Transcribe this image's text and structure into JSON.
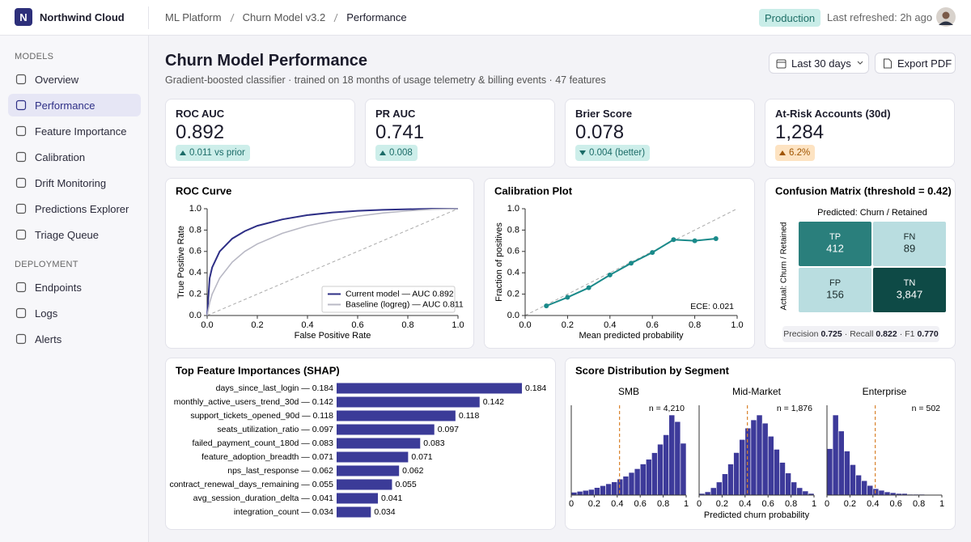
{
  "header": {
    "logo": "N",
    "brand": "Northwind Cloud",
    "breadcrumb": [
      "ML Platform",
      "Churn Model v3.2",
      "Performance"
    ],
    "badge": "Production",
    "refreshed": "Last refreshed: 2h ago"
  },
  "sidebar": {
    "sections": [
      {
        "title": "MODELS",
        "items": [
          {
            "label": "Overview"
          },
          {
            "label": "Performance",
            "active": true
          },
          {
            "label": "Feature Importance"
          },
          {
            "label": "Calibration"
          },
          {
            "label": "Drift Monitoring"
          },
          {
            "label": "Predictions Explorer"
          },
          {
            "label": "Triage Queue"
          }
        ]
      },
      {
        "title": "DEPLOYMENT",
        "items": [
          {
            "label": "Endpoints"
          },
          {
            "label": "Logs"
          },
          {
            "label": "Alerts"
          }
        ]
      }
    ]
  },
  "page": {
    "title": "Churn Model Performance",
    "subtitle": "Gradient-boosted classifier · trained on 18 months of usage telemetry & billing events · 47 features",
    "buttons": [
      "Last 30 days",
      "Export PDF"
    ],
    "distribution_title": "Score Distribution by Segment"
  },
  "kpis": [
    {
      "label": "ROC AUC",
      "value": "0.892",
      "delta": "0.011 vs prior",
      "trend": "up",
      "tone": "good"
    },
    {
      "label": "PR AUC",
      "value": "0.741",
      "delta": "0.008",
      "trend": "up",
      "tone": "good"
    },
    {
      "label": "Brier Score",
      "value": "0.078",
      "delta": "0.004 (better)",
      "trend": "down",
      "tone": "good"
    },
    {
      "label": "At-Risk Accounts (30d)",
      "value": "1,284",
      "delta": "6.2%",
      "trend": "up",
      "tone": "warn"
    }
  ],
  "chart_data": [
    {
      "type": "line",
      "title": "ROC Curve",
      "xlabel": "False Positive Rate",
      "ylabel": "True Positive Rate",
      "x": [
        0,
        0.01,
        0.02,
        0.05,
        0.1,
        0.15,
        0.2,
        0.3,
        0.4,
        0.5,
        0.6,
        0.7,
        0.8,
        0.9,
        1
      ],
      "series": [
        {
          "name": "Current model — AUC 0.892",
          "color": "#2e2f86",
          "values": [
            0,
            0.35,
            0.45,
            0.6,
            0.72,
            0.79,
            0.84,
            0.9,
            0.94,
            0.965,
            0.98,
            0.99,
            0.995,
            1,
            1
          ]
        },
        {
          "name": "Baseline (logreg) — AUC 0.811",
          "color": "#b8b8c4",
          "values": [
            0,
            0.12,
            0.2,
            0.35,
            0.5,
            0.6,
            0.67,
            0.77,
            0.84,
            0.89,
            0.93,
            0.96,
            0.98,
            0.995,
            1
          ]
        }
      ],
      "xlim": [
        0,
        1
      ],
      "ylim": [
        0,
        1
      ],
      "xticks": [
        {
          "value": 0,
          "label": "0.0"
        },
        0.2,
        0.4,
        0.6,
        0.8,
        {
          "value": 1,
          "label": "1.0"
        }
      ],
      "yticks": [
        {
          "value": 0,
          "label": "0.0"
        },
        0.2,
        0.4,
        0.6,
        0.8,
        {
          "value": 1,
          "label": "1.0"
        }
      ],
      "legend": "lower right"
    },
    {
      "type": "line",
      "title": "Calibration Plot",
      "xlabel": "Mean predicted probability",
      "ylabel": "Fraction of positives",
      "annotation": "ECE: 0.021",
      "markers": true,
      "x": [
        0.1,
        0.2,
        0.3,
        0.4,
        0.5,
        0.6,
        0.7,
        0.8,
        0.9
      ],
      "series": [
        {
          "color": "#1a8a8a",
          "values": [
            0.09,
            0.17,
            0.26,
            0.38,
            0.49,
            0.59,
            0.71,
            0.7,
            0.72
          ]
        }
      ],
      "xlim": [
        0,
        1
      ],
      "ylim": [
        0,
        1
      ],
      "xticks": [
        {
          "value": 0,
          "label": "0.0"
        },
        0.2,
        0.4,
        0.6,
        0.8,
        {
          "value": 1,
          "label": "1.0"
        }
      ],
      "yticks": [
        {
          "value": 0,
          "label": "0.0"
        },
        0.2,
        0.4,
        0.6,
        0.8,
        {
          "value": 1,
          "label": "1.0"
        }
      ]
    },
    {
      "type": "heatmap",
      "title": "Confusion Matrix (threshold = 0.42)",
      "xlabel": "Predicted: Churn / Retained",
      "ylabel": "Actual: Churn / Retained",
      "cell_names": [
        "TP",
        "FN",
        "FP",
        "TN"
      ],
      "values": [
        412,
        89,
        156,
        3847
      ],
      "value_labels": [
        "412",
        "89",
        "156",
        "3,847"
      ],
      "colors": [
        "#2a7f7c",
        "#b9dde0",
        "#b9dde0",
        "#0e4a46"
      ],
      "metrics": [
        {
          "name": "Precision",
          "value": "0.725"
        },
        {
          "name": "Recall",
          "value": "0.822"
        },
        {
          "name": "F1",
          "value": "0.770"
        }
      ],
      "metrics_separator": "·"
    },
    {
      "type": "hbar",
      "title": "Top Feature Importances (SHAP)",
      "color": "#3b3b98",
      "categories": [
        "days_since_last_login — 0.184",
        "monthly_active_users_trend_30d — 0.142",
        "support_tickets_opened_90d — 0.118",
        "seats_utilization_ratio — 0.097",
        "failed_payment_count_180d — 0.083",
        "feature_adoption_breadth — 0.071",
        "nps_last_response — 0.062",
        "contract_renewal_days_remaining — 0.055",
        "avg_session_duration_delta — 0.041",
        "integration_count — 0.034"
      ],
      "values": [
        0.184,
        0.142,
        0.118,
        0.097,
        0.083,
        0.071,
        0.062,
        0.055,
        0.041,
        0.034
      ]
    },
    {
      "type": "histogram",
      "title": "SMB",
      "annotation": "n = 4,210",
      "color": "#3d3a9a",
      "threshold": 0.42,
      "bins": [
        0,
        0.05,
        0.1,
        0.15,
        0.2,
        0.25,
        0.3,
        0.35,
        0.4,
        0.45,
        0.5,
        0.55,
        0.6,
        0.65,
        0.7,
        0.75,
        0.8,
        0.85,
        0.9,
        0.95,
        1
      ],
      "values": [
        3,
        4,
        5,
        6,
        8,
        10,
        12,
        14,
        17,
        20,
        24,
        28,
        33,
        38,
        45,
        54,
        64,
        85,
        78,
        55
      ],
      "xlim": [
        0,
        1
      ],
      "xticks": [
        0,
        0.2,
        0.4,
        0.6,
        0.8,
        1
      ]
    },
    {
      "type": "histogram",
      "title": "Mid-Market",
      "annotation": "n = 1,876",
      "color": "#3d3a9a",
      "threshold": 0.42,
      "xlabel": "Predicted churn probability",
      "bins": [
        0,
        0.05,
        0.1,
        0.15,
        0.2,
        0.25,
        0.3,
        0.35,
        0.4,
        0.45,
        0.5,
        0.55,
        0.6,
        0.65,
        0.7,
        0.75,
        0.8,
        0.85,
        0.9,
        0.95,
        1
      ],
      "values": [
        2,
        4,
        9,
        16,
        26,
        38,
        52,
        68,
        82,
        92,
        98,
        88,
        72,
        56,
        40,
        27,
        16,
        9,
        5,
        2
      ],
      "xlim": [
        0,
        1
      ],
      "xticks": [
        0,
        0.2,
        0.4,
        0.6,
        0.8,
        1
      ]
    },
    {
      "type": "histogram",
      "title": "Enterprise",
      "annotation": "n = 502",
      "color": "#3d3a9a",
      "threshold": 0.42,
      "bins": [
        0,
        0.05,
        0.1,
        0.15,
        0.2,
        0.25,
        0.3,
        0.35,
        0.4,
        0.45,
        0.5,
        0.55,
        0.6,
        0.65,
        0.7,
        0.75,
        0.8,
        0.85,
        0.9,
        0.95,
        1
      ],
      "values": [
        58,
        100,
        80,
        55,
        38,
        25,
        18,
        12,
        8,
        6,
        4,
        3,
        2,
        2,
        1,
        1,
        1,
        0,
        0,
        0
      ],
      "xlim": [
        0,
        1
      ],
      "xticks": [
        0,
        0.2,
        0.4,
        0.6,
        0.8,
        1
      ]
    }
  ]
}
